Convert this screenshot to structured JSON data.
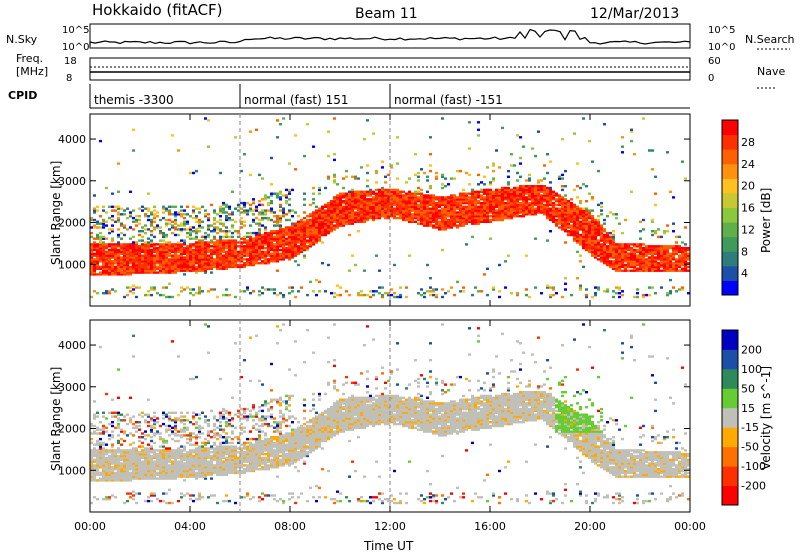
{
  "header": {
    "station": "Hokkaido (fitACF)",
    "beam": "Beam 11",
    "date": "12/Mar/2013"
  },
  "top_panels": {
    "nsky_label": "N.Sky",
    "nsearch_label": "N.Search",
    "nsky_ticks": [
      "10^5",
      "10^0"
    ],
    "nsearch_ticks": [
      "10^5",
      "10^0"
    ],
    "freq_label_1": "Freq.",
    "freq_label_2": "[MHz]",
    "freq_ticks": [
      "18",
      "8"
    ],
    "nave_label": "Nave",
    "nave_ticks": [
      "60",
      "0"
    ],
    "cpid_label": "CPID",
    "cpid_segments": [
      {
        "label": "themis -3300",
        "start_hour": 0,
        "end_hour": 6
      },
      {
        "label": "normal (fast) 151",
        "start_hour": 6,
        "end_hour": 12
      },
      {
        "label": "normal (fast) -151",
        "start_hour": 12,
        "end_hour": 24
      }
    ]
  },
  "chart_data": [
    {
      "type": "heatmap",
      "title": "",
      "xlabel": "Time UT",
      "ylabel": "Slant Range [km]",
      "xlim_hours": [
        0,
        24
      ],
      "x_ticks": [
        "00:00",
        "04:00",
        "08:00",
        "12:00",
        "16:00",
        "20:00",
        "00:00"
      ],
      "ylim": [
        0,
        4600
      ],
      "y_ticks": [
        1000,
        2000,
        3000,
        4000
      ],
      "colorbar": {
        "label": "Power [dB]",
        "ticks": [
          "4",
          "8",
          "12",
          "16",
          "20",
          "24",
          "28"
        ],
        "colors": [
          "#0000ff",
          "#1b4fa8",
          "#2e7d7d",
          "#3f9b5a",
          "#5fb04a",
          "#8cc83c",
          "#c8c832",
          "#ffc020",
          "#ff9010",
          "#ff6000",
          "#ff3000",
          "#ff0000"
        ]
      },
      "echo_band_km": [
        {
          "hour": 0,
          "low": 700,
          "high": 1500
        },
        {
          "hour": 4,
          "low": 800,
          "high": 1500
        },
        {
          "hour": 6,
          "low": 900,
          "high": 1600
        },
        {
          "hour": 8,
          "low": 1100,
          "high": 1900
        },
        {
          "hour": 10,
          "low": 1900,
          "high": 2700
        },
        {
          "hour": 12,
          "low": 2100,
          "high": 2800
        },
        {
          "hour": 14,
          "low": 1800,
          "high": 2600
        },
        {
          "hour": 16,
          "low": 2000,
          "high": 2800
        },
        {
          "hour": 18,
          "low": 2200,
          "high": 2900
        },
        {
          "hour": 20,
          "low": 1200,
          "high": 2200
        },
        {
          "hour": 21,
          "low": 800,
          "high": 1500
        },
        {
          "hour": 24,
          "low": 800,
          "high": 1400
        }
      ]
    },
    {
      "type": "heatmap",
      "title": "",
      "xlabel": "Time UT",
      "ylabel": "Slant Range [km]",
      "xlim_hours": [
        0,
        24
      ],
      "x_ticks": [
        "00:00",
        "04:00",
        "08:00",
        "12:00",
        "16:00",
        "20:00",
        "00:00"
      ],
      "ylim": [
        0,
        4600
      ],
      "y_ticks": [
        1000,
        2000,
        3000,
        4000
      ],
      "colorbar": {
        "label": "Velocity [m s^-1]",
        "ticks": [
          "200",
          "100",
          "50",
          "15",
          "-15",
          "-50",
          "-100",
          "-200"
        ],
        "colors": [
          "#0000c0",
          "#1b4fa8",
          "#2e8a5a",
          "#66cc33",
          "#c0c0b8",
          "#ffaa00",
          "#ff7000",
          "#ff3000",
          "#ff0000"
        ]
      },
      "ground_scatter_color": "#c0c0b8"
    }
  ]
}
